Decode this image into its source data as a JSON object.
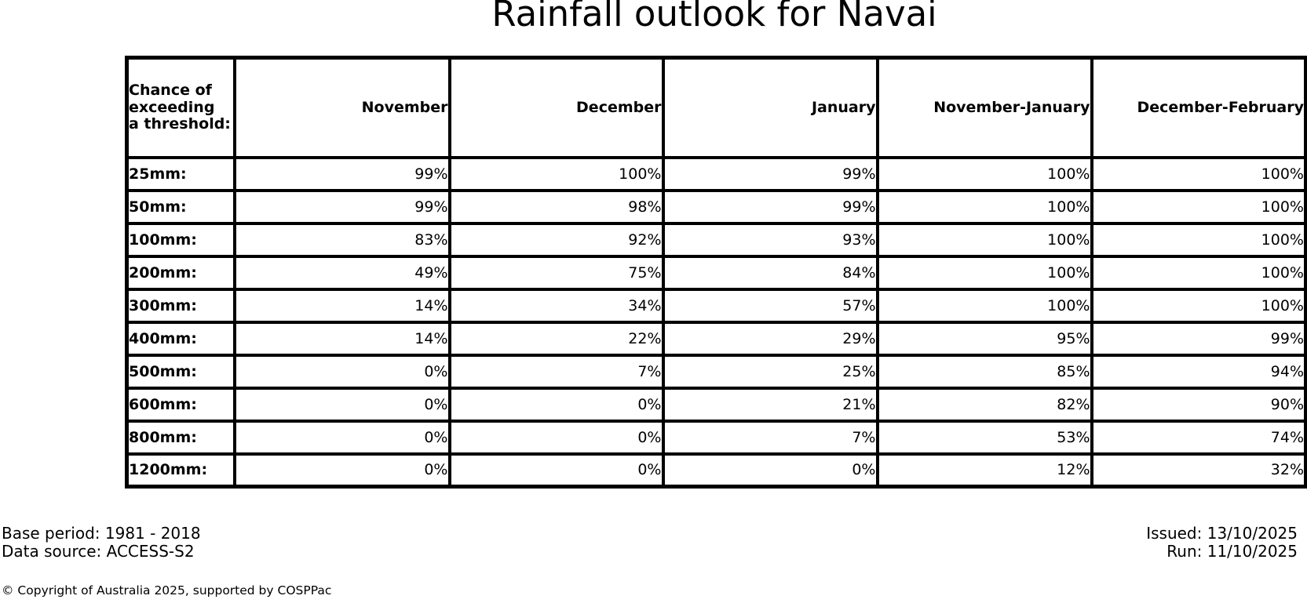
{
  "title": "Rainfall outlook for Navai",
  "colors": {
    "background": "#ffffff",
    "text": "#000000",
    "border": "#000000"
  },
  "table": {
    "corner_header": "Chance of\nexceeding\na threshold:",
    "columns": [
      "November",
      "December",
      "January",
      "November-January",
      "December-February"
    ],
    "rows": [
      {
        "label": "25mm:",
        "values": [
          "99%",
          "100%",
          "99%",
          "100%",
          "100%"
        ]
      },
      {
        "label": "50mm:",
        "values": [
          "99%",
          "98%",
          "99%",
          "100%",
          "100%"
        ]
      },
      {
        "label": "100mm:",
        "values": [
          "83%",
          "92%",
          "93%",
          "100%",
          "100%"
        ]
      },
      {
        "label": "200mm:",
        "values": [
          "49%",
          "75%",
          "84%",
          "100%",
          "100%"
        ]
      },
      {
        "label": "300mm:",
        "values": [
          "14%",
          "34%",
          "57%",
          "100%",
          "100%"
        ]
      },
      {
        "label": "400mm:",
        "values": [
          "14%",
          "22%",
          "29%",
          "95%",
          "99%"
        ]
      },
      {
        "label": "500mm:",
        "values": [
          "0%",
          "7%",
          "25%",
          "85%",
          "94%"
        ]
      },
      {
        "label": "600mm:",
        "values": [
          "0%",
          "0%",
          "21%",
          "82%",
          "90%"
        ]
      },
      {
        "label": "800mm:",
        "values": [
          "0%",
          "0%",
          "7%",
          "53%",
          "74%"
        ]
      },
      {
        "label": "1200mm:",
        "values": [
          "0%",
          "0%",
          "0%",
          "12%",
          "32%"
        ]
      }
    ]
  },
  "footer": {
    "base_period": "Base period: 1981 - 2018",
    "data_source": "Data source: ACCESS-S2",
    "issued": "Issued: 13/10/2025",
    "run": "Run: 11/10/2025",
    "copyright": "© Copyright of Australia 2025, supported by COSPPac"
  },
  "chart_data": {
    "type": "table",
    "title": "Rainfall outlook for Navai",
    "row_header_label": "Chance of exceeding a threshold:",
    "unit": "%",
    "categories": [
      "25mm",
      "50mm",
      "100mm",
      "200mm",
      "300mm",
      "400mm",
      "500mm",
      "600mm",
      "800mm",
      "1200mm"
    ],
    "series": [
      {
        "name": "November",
        "values": [
          99,
          99,
          83,
          49,
          14,
          14,
          0,
          0,
          0,
          0
        ]
      },
      {
        "name": "December",
        "values": [
          100,
          98,
          92,
          75,
          34,
          22,
          7,
          0,
          0,
          0
        ]
      },
      {
        "name": "January",
        "values": [
          99,
          99,
          93,
          84,
          57,
          29,
          25,
          21,
          7,
          0
        ]
      },
      {
        "name": "November-January",
        "values": [
          100,
          100,
          100,
          100,
          100,
          95,
          85,
          82,
          53,
          12
        ]
      },
      {
        "name": "December-February",
        "values": [
          100,
          100,
          100,
          100,
          100,
          99,
          94,
          90,
          74,
          32
        ]
      }
    ]
  }
}
